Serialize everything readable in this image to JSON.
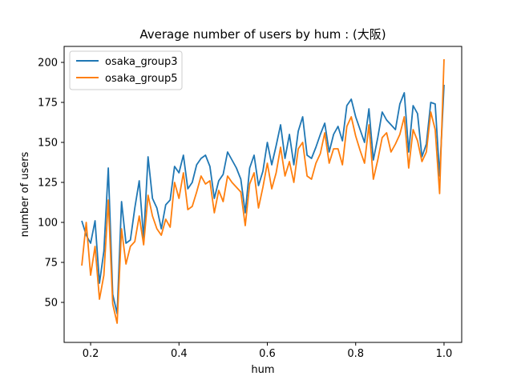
{
  "chart_data": {
    "type": "line",
    "title": "Average number of users by hum : (大阪)",
    "xlabel": "hum",
    "ylabel": "number of users",
    "xlim": [
      0.14,
      1.04
    ],
    "ylim": [
      25,
      210
    ],
    "xticks": [
      0.2,
      0.4,
      0.6,
      0.8,
      1.0
    ],
    "xtick_labels": [
      "0.2",
      "0.4",
      "0.6",
      "0.8",
      "1.0"
    ],
    "yticks": [
      50,
      75,
      100,
      125,
      150,
      175,
      200
    ],
    "ytick_labels": [
      "50",
      "75",
      "100",
      "125",
      "150",
      "175",
      "200"
    ],
    "grid": false,
    "legend_position": "upper left",
    "x": [
      0.18,
      0.19,
      0.2,
      0.21,
      0.22,
      0.23,
      0.24,
      0.25,
      0.26,
      0.27,
      0.28,
      0.29,
      0.3,
      0.31,
      0.32,
      0.33,
      0.34,
      0.35,
      0.36,
      0.37,
      0.38,
      0.39,
      0.4,
      0.41,
      0.42,
      0.43,
      0.44,
      0.45,
      0.46,
      0.47,
      0.48,
      0.49,
      0.5,
      0.51,
      0.52,
      0.53,
      0.54,
      0.55,
      0.56,
      0.57,
      0.58,
      0.59,
      0.6,
      0.61,
      0.62,
      0.63,
      0.64,
      0.65,
      0.66,
      0.67,
      0.68,
      0.69,
      0.7,
      0.71,
      0.72,
      0.73,
      0.74,
      0.75,
      0.76,
      0.77,
      0.78,
      0.79,
      0.8,
      0.81,
      0.82,
      0.83,
      0.84,
      0.85,
      0.86,
      0.87,
      0.88,
      0.89,
      0.9,
      0.91,
      0.92,
      0.93,
      0.94,
      0.95,
      0.96,
      0.97,
      0.98,
      0.99,
      1.0
    ],
    "series": [
      {
        "name": "osaka_group3",
        "color": "#1f77b4",
        "values": [
          101,
          92,
          87,
          101,
          62,
          82,
          134,
          55,
          43,
          113,
          87,
          89,
          109,
          126,
          90,
          141,
          115,
          109,
          96,
          111,
          114,
          135,
          131,
          142,
          121,
          125,
          136,
          140,
          142,
          135,
          115,
          126,
          130,
          144,
          139,
          134,
          127,
          106,
          134,
          142,
          123,
          132,
          150,
          136,
          148,
          161,
          140,
          155,
          136,
          157,
          166,
          142,
          140,
          147,
          155,
          162,
          144,
          155,
          160,
          151,
          173,
          177,
          166,
          158,
          150,
          171,
          139,
          153,
          169,
          164,
          161,
          158,
          174,
          181,
          144,
          173,
          168,
          141,
          149,
          175,
          174,
          129,
          186
        ]
      },
      {
        "name": "osaka_group5",
        "color": "#ff7f0e",
        "values": [
          73,
          100,
          67,
          85,
          52,
          67,
          114,
          49,
          37,
          96,
          74,
          85,
          88,
          104,
          86,
          117,
          104,
          96,
          92,
          102,
          97,
          125,
          115,
          131,
          108,
          110,
          119,
          129,
          124,
          126,
          106,
          120,
          113,
          129,
          125,
          122,
          119,
          98,
          124,
          131,
          109,
          122,
          137,
          121,
          131,
          147,
          129,
          138,
          125,
          146,
          150,
          129,
          127,
          137,
          143,
          156,
          137,
          146,
          146,
          136,
          160,
          166,
          154,
          145,
          137,
          161,
          127,
          139,
          153,
          156,
          144,
          149,
          155,
          166,
          134,
          158,
          151,
          138,
          144,
          169,
          158,
          118,
          202
        ]
      }
    ]
  }
}
